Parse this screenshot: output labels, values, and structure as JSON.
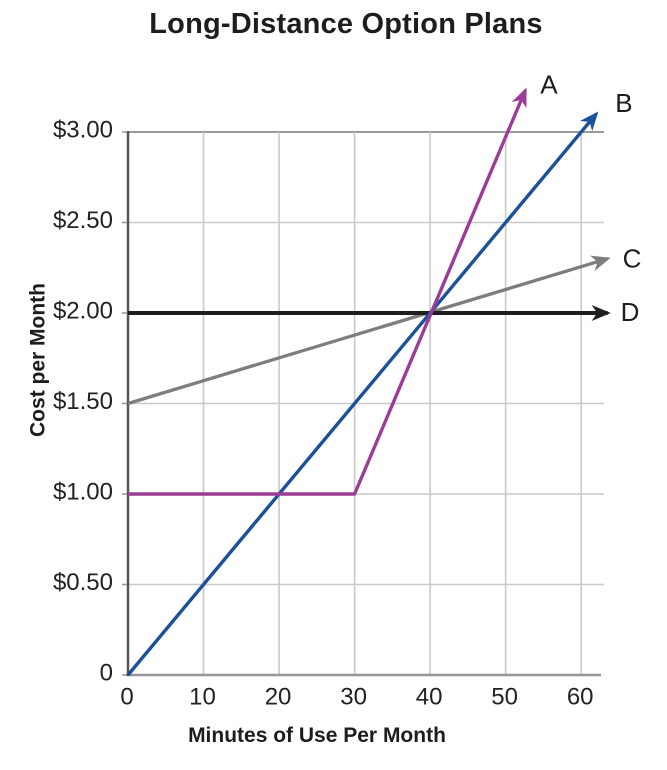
{
  "colors": {
    "background": "#ffffff",
    "text": "#1d1d1d",
    "grid": "#c9c9c9",
    "plot_top_border": "#9a9a9a",
    "x_axis": "#959595",
    "y_axis": "#565656"
  },
  "chart_data": {
    "type": "line",
    "title": "Long-Distance Option Plans",
    "xlabel": "Minutes of Use Per Month",
    "ylabel": "Cost per Month",
    "xlim": [
      0,
      63.5
    ],
    "ylim": [
      0,
      3.0
    ],
    "grid": true,
    "legend_position": "line-end-labels",
    "x_ticks": [
      {
        "value": 0,
        "label": "0"
      },
      {
        "value": 10,
        "label": "10"
      },
      {
        "value": 20,
        "label": "20"
      },
      {
        "value": 30,
        "label": "30"
      },
      {
        "value": 40,
        "label": "40"
      },
      {
        "value": 50,
        "label": "50"
      },
      {
        "value": 60,
        "label": "60"
      }
    ],
    "y_ticks": [
      {
        "value": 0,
        "label": "0"
      },
      {
        "value": 0.5,
        "label": "$0.50"
      },
      {
        "value": 1,
        "label": "$1.00"
      },
      {
        "value": 1.5,
        "label": "$1.50"
      },
      {
        "value": 2,
        "label": "$2.00"
      },
      {
        "value": 2.5,
        "label": "$2.50"
      },
      {
        "value": 3,
        "label": "$3.00"
      }
    ],
    "series": [
      {
        "name": "A",
        "color": "#9b3d96",
        "stroke_width": 3.4,
        "arrow": true,
        "points": [
          [
            0,
            1.0
          ],
          [
            30,
            1.0
          ],
          [
            52.6,
            3.23
          ]
        ],
        "label_offset": [
          15,
          -6
        ]
      },
      {
        "name": "B",
        "color": "#1c509b",
        "stroke_width": 3.4,
        "arrow": true,
        "points": [
          [
            0,
            0
          ],
          [
            62,
            3.1
          ]
        ],
        "label_offset": [
          19,
          -11
        ]
      },
      {
        "name": "C",
        "color": "#7d7d7d",
        "stroke_width": 3.3,
        "arrow": true,
        "points": [
          [
            0,
            1.5
          ],
          [
            63.5,
            2.3
          ]
        ],
        "label_offset": [
          15,
          0
        ]
      },
      {
        "name": "D",
        "color": "#1e1e1e",
        "stroke_width": 4,
        "arrow": true,
        "points": [
          [
            0,
            2.0
          ],
          [
            63.5,
            2.0
          ]
        ],
        "label_offset": [
          13,
          -1
        ]
      }
    ],
    "draw_order": [
      "C",
      "D",
      "B",
      "A"
    ]
  }
}
